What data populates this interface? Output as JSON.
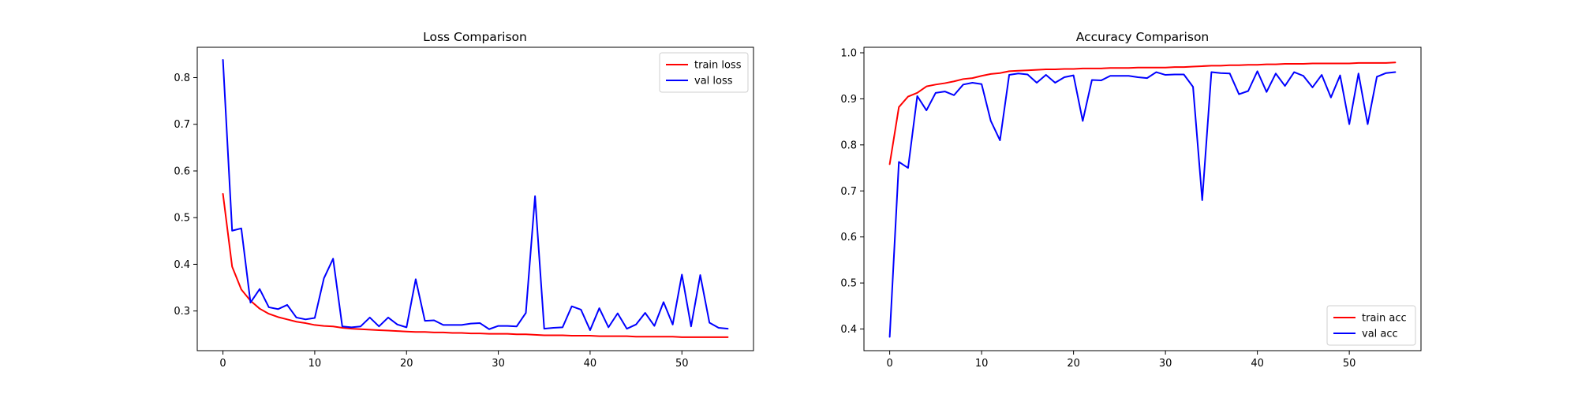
{
  "chart_data": [
    {
      "type": "line",
      "title": "Loss Comparison",
      "xlabel": "",
      "ylabel": "",
      "xlim": [
        -2.8,
        57.8
      ],
      "ylim": [
        0.215,
        0.865
      ],
      "xticks": [
        0,
        10,
        20,
        30,
        40,
        50
      ],
      "yticks": [
        0.3,
        0.4,
        0.5,
        0.6,
        0.7,
        0.8
      ],
      "ytick_decimals": 1,
      "grid": false,
      "legend": "upper-right",
      "x": [
        0,
        1,
        2,
        3,
        4,
        5,
        6,
        7,
        8,
        9,
        10,
        11,
        12,
        13,
        14,
        15,
        16,
        17,
        18,
        19,
        20,
        21,
        22,
        23,
        24,
        25,
        26,
        27,
        28,
        29,
        30,
        31,
        32,
        33,
        34,
        35,
        36,
        37,
        38,
        39,
        40,
        41,
        42,
        43,
        44,
        45,
        46,
        47,
        48,
        49,
        50,
        51,
        52,
        53,
        54,
        55
      ],
      "series": [
        {
          "name": "train loss",
          "color": "#ff0000",
          "values": [
            0.551,
            0.395,
            0.346,
            0.322,
            0.305,
            0.294,
            0.287,
            0.282,
            0.277,
            0.274,
            0.27,
            0.268,
            0.267,
            0.264,
            0.262,
            0.261,
            0.26,
            0.259,
            0.258,
            0.257,
            0.256,
            0.255,
            0.255,
            0.254,
            0.254,
            0.253,
            0.253,
            0.252,
            0.252,
            0.251,
            0.251,
            0.251,
            0.25,
            0.25,
            0.249,
            0.248,
            0.248,
            0.248,
            0.247,
            0.247,
            0.247,
            0.246,
            0.246,
            0.246,
            0.246,
            0.245,
            0.245,
            0.245,
            0.245,
            0.245,
            0.244,
            0.244,
            0.244,
            0.244,
            0.244,
            0.244
          ]
        },
        {
          "name": "val loss",
          "color": "#0000ff",
          "values": [
            0.838,
            0.472,
            0.477,
            0.318,
            0.347,
            0.308,
            0.304,
            0.313,
            0.286,
            0.282,
            0.285,
            0.37,
            0.412,
            0.267,
            0.265,
            0.267,
            0.286,
            0.267,
            0.286,
            0.271,
            0.265,
            0.368,
            0.279,
            0.28,
            0.27,
            0.27,
            0.27,
            0.273,
            0.274,
            0.261,
            0.268,
            0.268,
            0.267,
            0.296,
            0.546,
            0.262,
            0.264,
            0.265,
            0.31,
            0.303,
            0.259,
            0.306,
            0.265,
            0.295,
            0.262,
            0.271,
            0.296,
            0.268,
            0.319,
            0.271,
            0.378,
            0.267,
            0.377,
            0.275,
            0.264,
            0.262
          ]
        }
      ]
    },
    {
      "type": "line",
      "title": "Accuracy Comparison",
      "xlabel": "",
      "ylabel": "",
      "xlim": [
        -2.8,
        57.8
      ],
      "ylim": [
        0.353,
        1.012
      ],
      "xticks": [
        0,
        10,
        20,
        30,
        40,
        50
      ],
      "yticks": [
        0.4,
        0.5,
        0.6,
        0.7,
        0.8,
        0.9,
        1.0
      ],
      "ytick_decimals": 1,
      "grid": false,
      "legend": "lower-right",
      "x": [
        0,
        1,
        2,
        3,
        4,
        5,
        6,
        7,
        8,
        9,
        10,
        11,
        12,
        13,
        14,
        15,
        16,
        17,
        18,
        19,
        20,
        21,
        22,
        23,
        24,
        25,
        26,
        27,
        28,
        29,
        30,
        31,
        32,
        33,
        34,
        35,
        36,
        37,
        38,
        39,
        40,
        41,
        42,
        43,
        44,
        45,
        46,
        47,
        48,
        49,
        50,
        51,
        52,
        53,
        54,
        55
      ],
      "series": [
        {
          "name": "train acc",
          "color": "#ff0000",
          "values": [
            0.758,
            0.882,
            0.905,
            0.913,
            0.927,
            0.931,
            0.934,
            0.938,
            0.943,
            0.945,
            0.95,
            0.954,
            0.956,
            0.96,
            0.961,
            0.962,
            0.963,
            0.964,
            0.964,
            0.965,
            0.965,
            0.966,
            0.966,
            0.966,
            0.967,
            0.967,
            0.967,
            0.968,
            0.968,
            0.968,
            0.968,
            0.969,
            0.969,
            0.97,
            0.971,
            0.972,
            0.972,
            0.973,
            0.973,
            0.974,
            0.974,
            0.975,
            0.975,
            0.976,
            0.976,
            0.976,
            0.977,
            0.977,
            0.977,
            0.977,
            0.977,
            0.978,
            0.978,
            0.978,
            0.978,
            0.979
          ]
        },
        {
          "name": "val acc",
          "color": "#0000ff",
          "values": [
            0.383,
            0.763,
            0.75,
            0.906,
            0.875,
            0.913,
            0.916,
            0.908,
            0.931,
            0.935,
            0.932,
            0.852,
            0.81,
            0.952,
            0.955,
            0.953,
            0.935,
            0.952,
            0.935,
            0.947,
            0.951,
            0.852,
            0.941,
            0.94,
            0.95,
            0.95,
            0.95,
            0.947,
            0.945,
            0.958,
            0.952,
            0.953,
            0.953,
            0.926,
            0.68,
            0.958,
            0.956,
            0.955,
            0.91,
            0.917,
            0.96,
            0.915,
            0.955,
            0.928,
            0.958,
            0.95,
            0.925,
            0.952,
            0.903,
            0.951,
            0.845,
            0.955,
            0.845,
            0.948,
            0.956,
            0.958
          ]
        }
      ]
    }
  ]
}
